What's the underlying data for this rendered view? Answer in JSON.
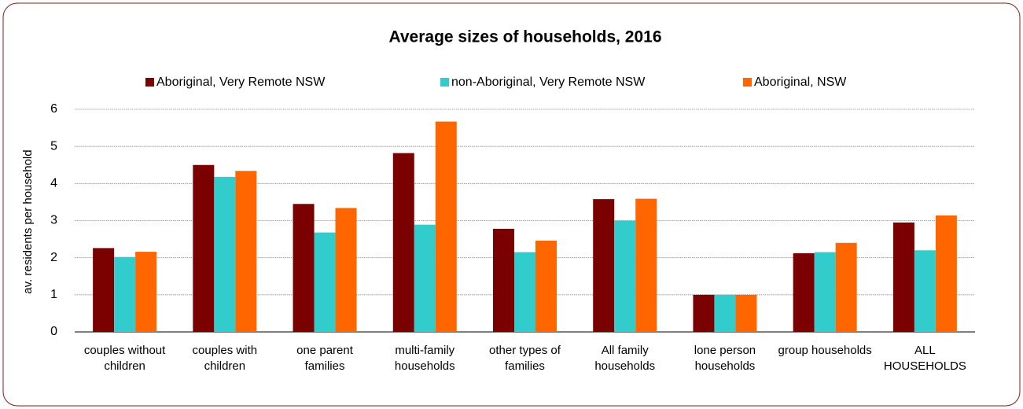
{
  "chart_data": {
    "type": "bar",
    "title": "Average sizes of households, 2016",
    "y_label": "av. residents per household",
    "categories": [
      "couples without children",
      "couples with children",
      "one parent families",
      "multi-family households",
      "other types of families",
      "All family households",
      "lone person households",
      "group households",
      "ALL HOUSEHOLDS"
    ],
    "series": [
      {
        "name": "Aboriginal, Very Remote NSW",
        "color": "#7b0000",
        "values": [
          2.26,
          4.5,
          3.45,
          4.82,
          2.78,
          3.58,
          1.0,
          2.12,
          2.95
        ]
      },
      {
        "name": "non-Aboriginal, Very Remote NSW",
        "color": "#33cccc",
        "values": [
          2.02,
          4.18,
          2.68,
          2.89,
          2.15,
          3.0,
          1.0,
          2.15,
          2.2
        ]
      },
      {
        "name": "Aboriginal, NSW",
        "color": "#ff6600",
        "values": [
          2.16,
          4.34,
          3.34,
          5.67,
          2.46,
          3.59,
          1.0,
          2.4,
          3.14
        ]
      }
    ],
    "ylim": [
      0,
      6
    ],
    "yticks": [
      0,
      1,
      2,
      3,
      4,
      5,
      6
    ],
    "grid": true,
    "legend": "top"
  }
}
